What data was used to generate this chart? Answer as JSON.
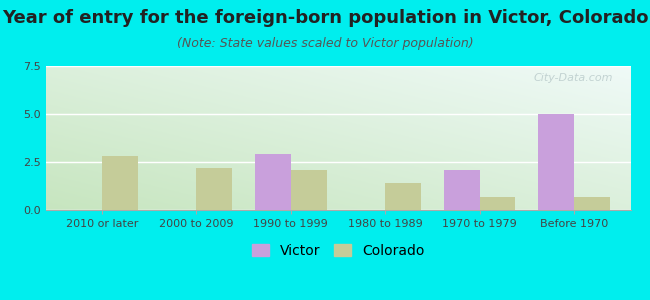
{
  "title": "Year of entry for the foreign-born population in Victor, Colorado",
  "subtitle": "(Note: State values scaled to Victor population)",
  "categories": [
    "2010 or later",
    "2000 to 2009",
    "1990 to 1999",
    "1980 to 1989",
    "1970 to 1979",
    "Before 1970"
  ],
  "victor_values": [
    0,
    0,
    2.9,
    0,
    2.1,
    5.0
  ],
  "colorado_values": [
    2.8,
    2.2,
    2.1,
    1.4,
    0.7,
    0.7
  ],
  "victor_color": "#c9a0dc",
  "colorado_color": "#c5cc99",
  "background_color": "#00eeee",
  "ylim": [
    0,
    7.5
  ],
  "yticks": [
    0,
    2.5,
    5,
    7.5
  ],
  "bar_width": 0.38,
  "title_fontsize": 13,
  "subtitle_fontsize": 9,
  "legend_fontsize": 10,
  "tick_fontsize": 8,
  "watermark_text": "City-Data.com"
}
